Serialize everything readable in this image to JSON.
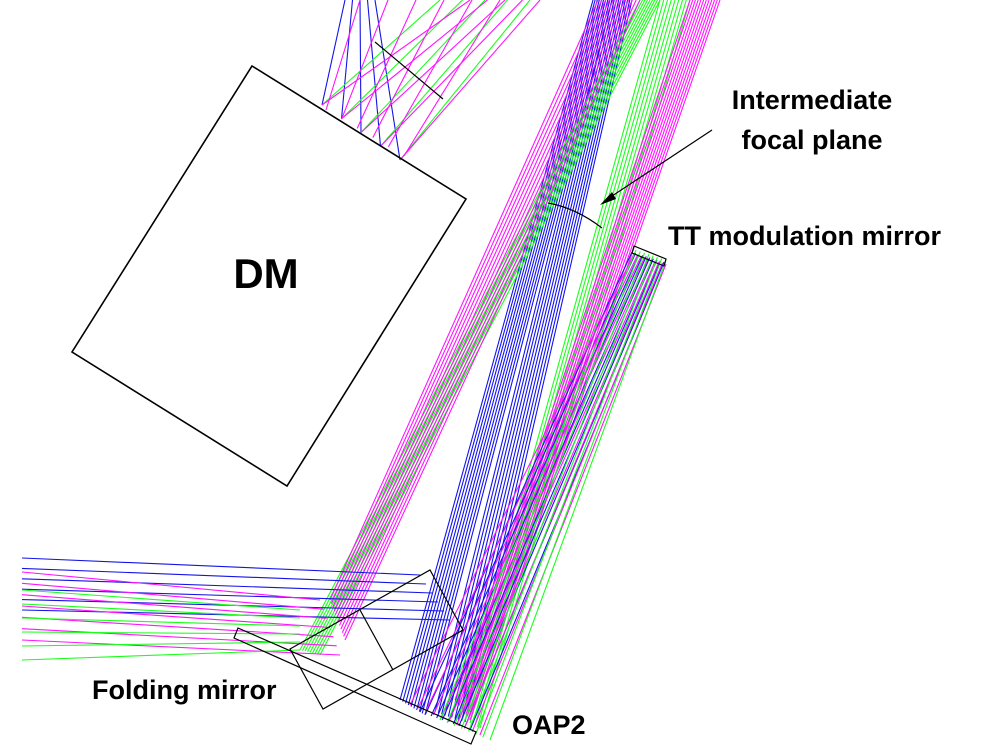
{
  "labels": {
    "dm": "DM",
    "intermediate_line1": "Intermediate",
    "intermediate_line2": "focal plane",
    "tt_mirror": "TT modulation mirror",
    "folding_mirror": "Folding mirror",
    "oap2": "OAP2"
  },
  "colors": {
    "blue": "#1414e6",
    "green": "#1aff1a",
    "magenta": "#ff14ff",
    "outline": "#000000"
  }
}
